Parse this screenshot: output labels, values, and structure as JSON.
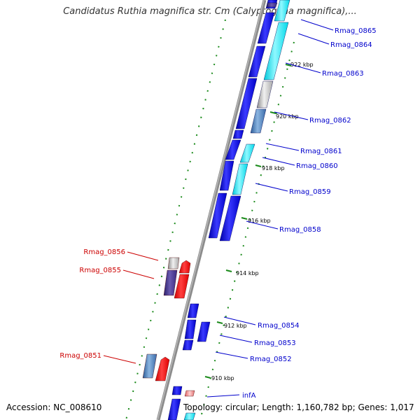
{
  "title": "Candidatus Ruthia magnifica str. Cm (Calyptogena magnifica),...",
  "footer": {
    "accession": "Accession: NC_008610",
    "summary": "Topology: circular; Length: 1,160,782 bp; Genes: 1,017"
  },
  "ticks": [
    "922 kbp",
    "920 kbp",
    "918 kbp",
    "916 kbp",
    "914 kbp",
    "912 kbp",
    "910 kbp"
  ],
  "genes": [
    {
      "label": "Rmag_0865",
      "color": "#0000cc"
    },
    {
      "label": "Rmag_0864",
      "color": "#0000cc"
    },
    {
      "label": "Rmag_0863",
      "color": "#0000cc"
    },
    {
      "label": "Rmag_0862",
      "color": "#0000cc"
    },
    {
      "label": "Rmag_0861",
      "color": "#0000cc"
    },
    {
      "label": "Rmag_0860",
      "color": "#0000cc"
    },
    {
      "label": "Rmag_0859",
      "color": "#0000cc"
    },
    {
      "label": "Rmag_0858",
      "color": "#0000cc"
    },
    {
      "label": "Rmag_0856",
      "color": "#cc0000"
    },
    {
      "label": "Rmag_0855",
      "color": "#cc0000"
    },
    {
      "label": "Rmag_0854",
      "color": "#0000cc"
    },
    {
      "label": "Rmag_0853",
      "color": "#0000cc"
    },
    {
      "label": "Rmag_0852",
      "color": "#0000cc"
    },
    {
      "label": "Rmag_0851",
      "color": "#cc0000"
    },
    {
      "label": "infA",
      "color": "#0000cc"
    }
  ]
}
